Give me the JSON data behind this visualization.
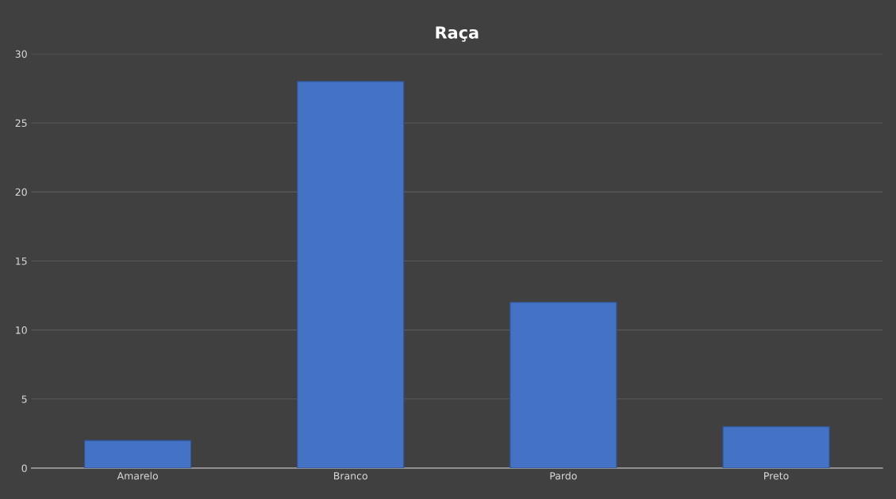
{
  "chart_data": {
    "type": "bar",
    "title": "Raça",
    "categories": [
      "Amarelo",
      "Branco",
      "Pardo",
      "Preto"
    ],
    "values": [
      2,
      28,
      12,
      3
    ],
    "color": "#4472c4",
    "ylim": [
      0,
      30
    ],
    "yticks": [
      0,
      5,
      10,
      15,
      20,
      25,
      30
    ],
    "grid": "y"
  }
}
